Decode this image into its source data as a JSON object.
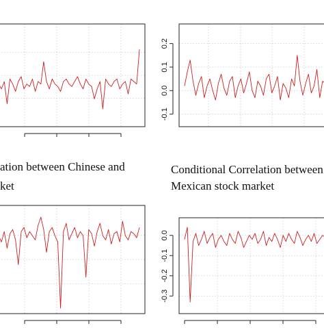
{
  "colors": {
    "series": "#cc1f1f",
    "frame": "#222222",
    "grid": "#c8c8c8"
  },
  "captions": {
    "bl_line1": "ation between Chinese and",
    "bl_line2": "ket",
    "br_line1": "Conditional Correlation between",
    "br_line2": "Mexican stock market"
  },
  "chart_data": [
    {
      "type": "line",
      "panel": "top-left",
      "title": "",
      "xlabel": "",
      "ylabel": "",
      "y_tick_labels": [],
      "ylim": [
        -0.15,
        0.22
      ],
      "grid": true,
      "x": [
        0,
        1,
        2,
        3,
        4,
        5,
        6,
        7,
        8,
        9,
        10,
        11,
        12,
        13,
        14,
        15,
        16,
        17,
        18,
        19,
        20,
        21,
        22,
        23,
        24,
        25,
        26,
        27,
        28,
        29,
        30,
        31,
        32,
        33,
        34,
        35,
        36,
        37,
        38,
        39,
        40,
        41,
        42,
        43,
        44,
        45,
        46,
        47,
        48,
        49,
        50
      ],
      "series": [
        {
          "values": [
            0.0,
            -0.02,
            0.01,
            -0.08,
            0.02,
            0.0,
            -0.03,
            0.01,
            0.03,
            -0.02,
            0.0,
            -0.01,
            0.02,
            -0.03,
            0.01,
            0.0,
            0.09,
            0.01,
            -0.02,
            0.02,
            0.0,
            -0.01,
            -0.03,
            0.01,
            0.02,
            0.0,
            -0.01,
            0.01,
            0.03,
            0.0,
            -0.02,
            0.02,
            0.0,
            -0.01,
            -0.06,
            -0.02,
            0.01,
            -0.1,
            0.02,
            0.0,
            -0.01,
            0.01,
            0.02,
            -0.02,
            0.0,
            0.01,
            -0.04,
            0.02,
            0.01,
            0.0,
            0.14
          ]
        }
      ]
    },
    {
      "type": "line",
      "panel": "top-right",
      "title": "",
      "xlabel": "",
      "ylabel": "",
      "y_tick_labels": [
        "0.2",
        "0.1",
        "0.0",
        "-0.1"
      ],
      "ylim": [
        -0.13,
        0.26
      ],
      "grid": true,
      "x": [
        0,
        1,
        2,
        3,
        4,
        5,
        6,
        7,
        8,
        9,
        10,
        11,
        12,
        13,
        14,
        15,
        16,
        17,
        18,
        19,
        20,
        21,
        22,
        23,
        24,
        25,
        26,
        27,
        28,
        29,
        30,
        31,
        32,
        33,
        34,
        35,
        36,
        37,
        38,
        39,
        40,
        41,
        42,
        43,
        44,
        45,
        46,
        47,
        48,
        49,
        50
      ],
      "series": [
        {
          "values": [
            0.02,
            0.08,
            0.13,
            0.04,
            -0.02,
            0.03,
            0.06,
            -0.03,
            0.02,
            0.05,
            0.0,
            -0.04,
            0.03,
            0.07,
            0.01,
            -0.02,
            0.04,
            0.06,
            -0.03,
            0.02,
            0.05,
            -0.01,
            0.03,
            0.08,
            0.0,
            -0.03,
            0.04,
            0.02,
            -0.02,
            0.05,
            0.07,
            -0.01,
            0.02,
            0.06,
            -0.04,
            0.03,
            0.01,
            -0.03,
            0.05,
            0.02,
            0.15,
            0.04,
            -0.02,
            0.03,
            0.07,
            -0.01,
            0.02,
            0.09,
            -0.03,
            0.04,
            0.03
          ]
        }
      ]
    },
    {
      "type": "line",
      "panel": "bottom-left",
      "title": "",
      "xlabel": "",
      "ylabel": "",
      "y_tick_labels": [],
      "ylim": [
        -0.35,
        0.12
      ],
      "grid": true,
      "x": [
        0,
        1,
        2,
        3,
        4,
        5,
        6,
        7,
        8,
        9,
        10,
        11,
        12,
        13,
        14,
        15,
        16,
        17,
        18,
        19,
        20,
        21,
        22,
        23,
        24,
        25,
        26,
        27,
        28,
        29,
        30,
        31,
        32,
        33,
        34,
        35,
        36,
        37,
        38,
        39,
        40,
        41,
        42,
        43,
        44,
        45,
        46,
        47,
        48,
        49,
        50
      ],
      "series": [
        {
          "values": [
            0.0,
            -0.03,
            0.02,
            -0.06,
            0.01,
            0.03,
            -0.02,
            -0.14,
            0.02,
            0.04,
            -0.01,
            0.02,
            0.0,
            -0.02,
            0.05,
            0.09,
            0.03,
            -0.08,
            0.02,
            0.04,
            0.0,
            -0.03,
            -0.35,
            0.02,
            0.06,
            -0.02,
            0.01,
            0.04,
            -0.01,
            0.02,
            0.0,
            -0.2,
            0.03,
            0.01,
            -0.05,
            0.02,
            0.06,
            0.0,
            -0.02,
            0.03,
            -0.04,
            0.01,
            0.02,
            -0.03,
            0.07,
            0.0,
            -0.02,
            0.02,
            0.01,
            -0.01,
            0.04
          ]
        }
      ]
    },
    {
      "type": "line",
      "panel": "bottom-right",
      "title": "",
      "xlabel": "",
      "ylabel": "",
      "y_tick_labels": [
        "0.0",
        "-0.1",
        "-0.2",
        "-0.3"
      ],
      "ylim": [
        -0.36,
        0.06
      ],
      "grid": true,
      "x": [
        0,
        1,
        2,
        3,
        4,
        5,
        6,
        7,
        8,
        9,
        10,
        11,
        12,
        13,
        14,
        15,
        16,
        17,
        18,
        19,
        20,
        21,
        22,
        23,
        24,
        25,
        26,
        27,
        28,
        29,
        30,
        31,
        32,
        33,
        34,
        35,
        36,
        37,
        38,
        39,
        40,
        41,
        42,
        43,
        44,
        45,
        46,
        47,
        48,
        49,
        50
      ],
      "series": [
        {
          "values": [
            -0.02,
            0.04,
            -0.33,
            -0.03,
            0.01,
            -0.05,
            -0.02,
            0.02,
            -0.04,
            -0.01,
            0.01,
            -0.06,
            -0.02,
            0.0,
            -0.03,
            -0.05,
            0.01,
            -0.02,
            -0.04,
            0.02,
            -0.01,
            -0.06,
            -0.03,
            0.0,
            -0.02,
            0.01,
            -0.04,
            -0.02,
            0.02,
            -0.05,
            -0.01,
            -0.03,
            0.01,
            -0.02,
            -0.06,
            0.0,
            -0.03,
            0.01,
            -0.02,
            -0.04,
            0.02,
            -0.01,
            -0.05,
            -0.02,
            0.0,
            -0.03,
            0.01,
            -0.04,
            -0.02,
            0.0,
            -0.01
          ]
        }
      ]
    }
  ]
}
